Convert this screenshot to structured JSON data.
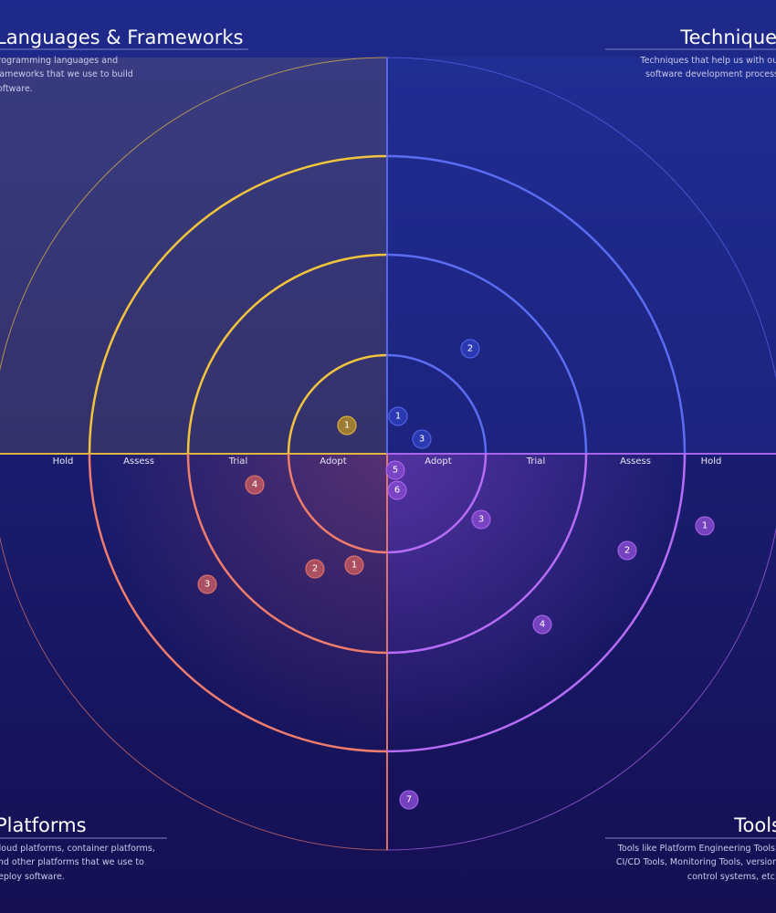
{
  "rings": [
    "Adopt",
    "Trial",
    "Assess",
    "Hold"
  ],
  "quadrants": [
    {
      "title": "Languages & Frameworks",
      "description": [
        "Programming languages and",
        "frameworks that we use to build",
        "software."
      ],
      "blips": [
        1
      ]
    },
    {
      "title": "Techniques",
      "description": [
        "Techniques that help us with our",
        "software development process."
      ],
      "blips": [
        1,
        2,
        3
      ]
    },
    {
      "title": "Platforms",
      "description": [
        "Cloud platforms, container platforms,",
        "and other platforms that we use to",
        "deploy software."
      ],
      "blips": [
        1,
        2,
        3,
        4
      ]
    },
    {
      "title": "Tools",
      "description": [
        "Tools like Platform Engineering Tools,",
        "CI/CD Tools, Monitoring Tools, version",
        "control systems, etc."
      ],
      "blips": [
        1,
        2,
        3,
        4,
        5,
        6,
        7
      ]
    }
  ]
}
